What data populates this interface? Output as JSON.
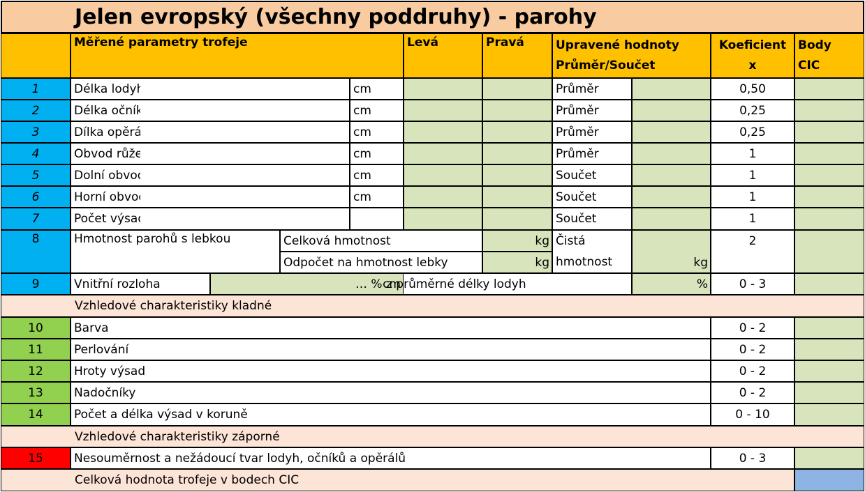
{
  "title": "Jelen evropský (všechny poddruhy) - parohy",
  "header": {
    "param": "Měřené parametry trofeje",
    "left": "Levá",
    "right": "Pravá",
    "adj1": "Upravené hodnoty",
    "adj2": "Průměr/Součet",
    "coef1": "Koeficient",
    "coef2": "x",
    "body1": "Body",
    "body2": "CIC"
  },
  "rows": [
    {
      "num": "1",
      "label": "Délka lodyhy",
      "unit": "cm",
      "mode": "Průměr",
      "coef": "0,50"
    },
    {
      "num": "2",
      "label": "Délka očníku",
      "unit": "cm",
      "mode": "Průměr",
      "coef": "0,25"
    },
    {
      "num": "3",
      "label": "Dílka opěráku",
      "unit": "cm",
      "mode": "Průměr",
      "coef": "0,25"
    },
    {
      "num": "4",
      "label": "Obvod růže",
      "unit": "cm",
      "mode": "Průměr",
      "coef": "1"
    },
    {
      "num": "5",
      "label": "Dolní obvod lodyhy",
      "unit": "cm",
      "mode": "Součet",
      "coef": "1"
    },
    {
      "num": "6",
      "label": "Horní obvod lodyhy",
      "unit": "cm",
      "mode": "Součet",
      "coef": "1"
    },
    {
      "num": "7",
      "label": "Počet výsad na lodyze",
      "unit": "",
      "mode": "Součet",
      "coef": "1"
    }
  ],
  "weight": {
    "num": "8",
    "label": "Hmotnost parohů s lebkou",
    "total": "Celková hmotnost",
    "total_unit": "kg",
    "deduct": "Odpočet na hmotnost lebky",
    "deduct_unit": "kg",
    "net1": "Čistá",
    "net2": "hmotnost",
    "net_unit": "kg",
    "coef": "2"
  },
  "spread": {
    "num": "9",
    "label": "Vnitřní rozloha",
    "unit": "cm",
    "pct_text": "… % z průměrné délky lodyh",
    "pct_unit": "%",
    "coef": "0 - 3"
  },
  "positive": {
    "title": "Vzhledové charakteristiky kladné",
    "rows": [
      {
        "num": "10",
        "label": "Barva",
        "coef": "0 - 2"
      },
      {
        "num": "11",
        "label": "Perlování",
        "coef": "0 - 2"
      },
      {
        "num": "12",
        "label": "Hroty výsad",
        "coef": "0 - 2"
      },
      {
        "num": "13",
        "label": "Nadočníky",
        "coef": "0 - 2"
      },
      {
        "num": "14",
        "label": "Počet a délka výsad v koruně",
        "coef": "0 - 10"
      }
    ]
  },
  "negative": {
    "title": "Vzhledové charakteristiky záporné",
    "rows": [
      {
        "num": "15",
        "label": "Nesouměrnost a nežádoucí tvar lodyh, očníků a opěrálů",
        "coef": "0 - 3"
      }
    ]
  },
  "total": {
    "label": "Celková hodnota trofeje v bodech CIC"
  },
  "colors": {
    "title_bg": "#f8cba0",
    "header_bg": "#ffc000",
    "blue": "#00b0f0",
    "green_num": "#92d050",
    "red": "#ff0000",
    "input": "#d8e4bc",
    "section": "#fce4d6",
    "total_cell": "#8eb4e3"
  }
}
